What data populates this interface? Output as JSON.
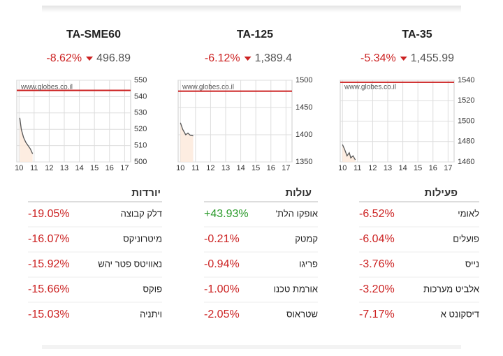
{
  "chart_data": [
    {
      "type": "line",
      "title": "TA-SME60",
      "change": "-8.62%",
      "value": "496.89",
      "watermark": "www.globes.co.il",
      "x": [
        10.05,
        10.15,
        10.3,
        10.45,
        10.6,
        10.75,
        10.9
      ],
      "series": [
        {
          "color": "#555555",
          "values": [
            527,
            520,
            515,
            512,
            510,
            508,
            505
          ]
        }
      ],
      "reference_line": {
        "value": 543.8,
        "color": "#cc2222"
      },
      "xlim": [
        9.85,
        17.4
      ],
      "xticks": [
        10,
        11,
        12,
        13,
        14,
        15,
        16,
        17
      ],
      "ylim": [
        500,
        550
      ],
      "yticks": [
        500,
        510,
        520,
        530,
        540,
        550
      ],
      "grid": true
    },
    {
      "type": "line",
      "title": "TA-125",
      "change": "-6.12%",
      "value": "1,389.4",
      "watermark": "www.globes.co.il",
      "x": [
        10.0,
        10.15,
        10.35,
        10.5,
        10.65,
        10.85
      ],
      "series": [
        {
          "color": "#555555",
          "values": [
            1422,
            1410,
            1400,
            1403,
            1399,
            1398
          ]
        }
      ],
      "reference_line": {
        "value": 1480,
        "color": "#cc2222"
      },
      "xlim": [
        9.85,
        17.4
      ],
      "xticks": [
        10,
        11,
        12,
        13,
        14,
        15,
        16,
        17
      ],
      "ylim": [
        1350,
        1500
      ],
      "yticks": [
        1350,
        1400,
        1450,
        1500
      ],
      "grid": true
    },
    {
      "type": "line",
      "title": "TA-35",
      "change": "-5.34%",
      "value": "1,455.99",
      "watermark": "www.globes.co.il",
      "x": [
        10.0,
        10.15,
        10.3,
        10.45,
        10.55,
        10.7,
        10.85
      ],
      "series": [
        {
          "color": "#555555",
          "values": [
            1477,
            1472,
            1466,
            1469,
            1464,
            1466,
            1462
          ]
        }
      ],
      "reference_line": {
        "value": 1538,
        "color": "#cc2222"
      },
      "xlim": [
        9.85,
        17.4
      ],
      "xticks": [
        10,
        11,
        12,
        13,
        14,
        15,
        16,
        17
      ],
      "ylim": [
        1460,
        1540
      ],
      "yticks": [
        1460,
        1480,
        1500,
        1520,
        1540
      ],
      "grid": true
    }
  ],
  "tables": [
    {
      "header": "יורדות",
      "rows": [
        [
          "דלק קבוצה",
          "-19.05%"
        ],
        [
          "מיטרוניקס",
          "-16.07%"
        ],
        [
          "נאוויטס פטר יהש",
          "-15.92%"
        ],
        [
          "פוקס",
          "-15.66%"
        ],
        [
          "ויתניה",
          "-15.03%"
        ]
      ]
    },
    {
      "header": "עולות",
      "rows": [
        [
          "אופקו הלת'",
          "+43.93%"
        ],
        [
          "קמטק",
          "-0.21%"
        ],
        [
          "פריגו",
          "-0.94%"
        ],
        [
          "אורמת טכנו",
          "-1.00%"
        ],
        [
          "שטראוס",
          "-2.05%"
        ]
      ]
    },
    {
      "header": "פעילות",
      "rows": [
        [
          "לאומי",
          "-6.52%"
        ],
        [
          "פועלים",
          "-6.04%"
        ],
        [
          "נייס",
          "-3.76%"
        ],
        [
          "אלביט מערכות",
          "-3.20%"
        ],
        [
          "דיסקונט א",
          "-7.17%"
        ]
      ]
    }
  ]
}
